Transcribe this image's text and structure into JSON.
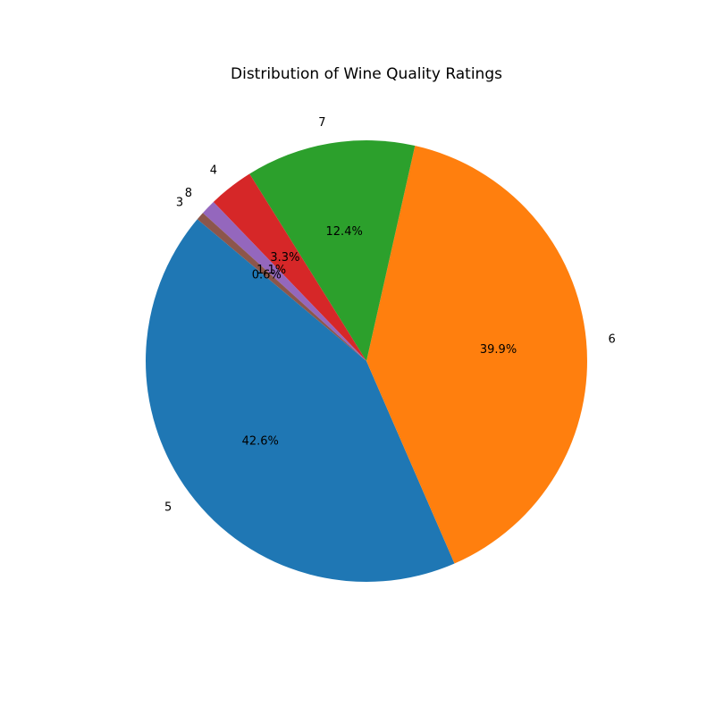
{
  "chart_data": {
    "type": "pie",
    "title": "Distribution of Wine Quality Ratings",
    "start_angle_deg": 140,
    "counterclock": true,
    "slices": [
      {
        "label": "5",
        "value": 42.6,
        "pct_text": "42.6%",
        "color": "#1f77b4"
      },
      {
        "label": "6",
        "value": 39.9,
        "pct_text": "39.9%",
        "color": "#ff7f0e"
      },
      {
        "label": "7",
        "value": 12.4,
        "pct_text": "12.4%",
        "color": "#2ca02c"
      },
      {
        "label": "4",
        "value": 3.3,
        "pct_text": "3.3%",
        "color": "#d62728"
      },
      {
        "label": "8",
        "value": 1.1,
        "pct_text": "1.1%",
        "color": "#9467bd"
      },
      {
        "label": "3",
        "value": 0.6,
        "pct_text": "0.6%",
        "color": "#8c564b"
      }
    ]
  }
}
